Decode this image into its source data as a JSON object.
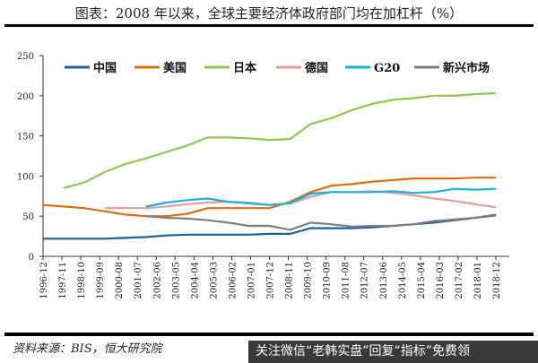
{
  "title": "图表：2008 年以来，全球主要经济体政府部门均在加杠杆（%）",
  "source": "资料来源：BIS，恒大研究院",
  "watermark": "关注微信“老韩实盘”回复“指标”免费领",
  "chart_data": {
    "type": "line",
    "title": "图表：2008 年以来，全球主要经济体政府部门均在加杠杆（%）",
    "xlabel": "",
    "ylabel": "",
    "ylim": [
      0,
      250
    ],
    "yticks": [
      0,
      50,
      100,
      150,
      200,
      250
    ],
    "xticks": [
      "1996-12",
      "1997-11",
      "1998-10",
      "1999-09",
      "2000-08",
      "2001-07",
      "2002-06",
      "2003-05",
      "2004-04",
      "2005-03",
      "2006-02",
      "2007-01",
      "2007-12",
      "2008-11",
      "2009-10",
      "2010-09",
      "2011-08",
      "2012-07",
      "2013-06",
      "2014-05",
      "2015-04",
      "2016-03",
      "2017-02",
      "2018-01",
      "2018-12"
    ],
    "grid": false,
    "legend": "top",
    "x": [
      "1996-12",
      "1997-12",
      "1998-12",
      "1999-12",
      "2000-12",
      "2001-12",
      "2002-12",
      "2003-12",
      "2004-12",
      "2005-12",
      "2006-12",
      "2007-12",
      "2008-12",
      "2009-12",
      "2010-12",
      "2011-12",
      "2012-12",
      "2013-12",
      "2014-12",
      "2015-12",
      "2016-12",
      "2017-12",
      "2018-12"
    ],
    "series": [
      {
        "name": "中国",
        "color": "#1f5f9e",
        "values": [
          22,
          22,
          22,
          22,
          23,
          24,
          26,
          27,
          27,
          27,
          27,
          28,
          28,
          35,
          35,
          35,
          36,
          38,
          40,
          42,
          45,
          48,
          51
        ]
      },
      {
        "name": "美国",
        "color": "#e06c10",
        "values": [
          64,
          62,
          60,
          56,
          52,
          50,
          50,
          53,
          60,
          60,
          60,
          60,
          68,
          80,
          88,
          90,
          93,
          95,
          97,
          97,
          97,
          98,
          98
        ]
      },
      {
        "name": "日本",
        "color": "#8cc84b",
        "values": [
          null,
          85,
          92,
          105,
          115,
          122,
          130,
          138,
          148,
          148,
          147,
          145,
          146,
          165,
          172,
          182,
          190,
          195,
          197,
          200,
          200,
          202,
          203
        ]
      },
      {
        "name": "德国",
        "color": "#e0a09a",
        "values": [
          null,
          null,
          null,
          60,
          60,
          60,
          62,
          65,
          67,
          68,
          67,
          64,
          66,
          74,
          80,
          80,
          81,
          79,
          76,
          72,
          69,
          65,
          61
        ]
      },
      {
        "name": "G20",
        "color": "#1ab0e0",
        "values": [
          null,
          null,
          null,
          null,
          null,
          62,
          67,
          70,
          72,
          68,
          66,
          64,
          66,
          78,
          80,
          80,
          80,
          81,
          79,
          80,
          84,
          83,
          84
        ]
      },
      {
        "name": "新兴市场",
        "color": "#7f7f7f",
        "values": [
          null,
          null,
          null,
          null,
          null,
          50,
          48,
          47,
          45,
          42,
          38,
          38,
          33,
          42,
          40,
          37,
          38,
          38,
          40,
          44,
          46,
          48,
          52
        ]
      }
    ]
  }
}
